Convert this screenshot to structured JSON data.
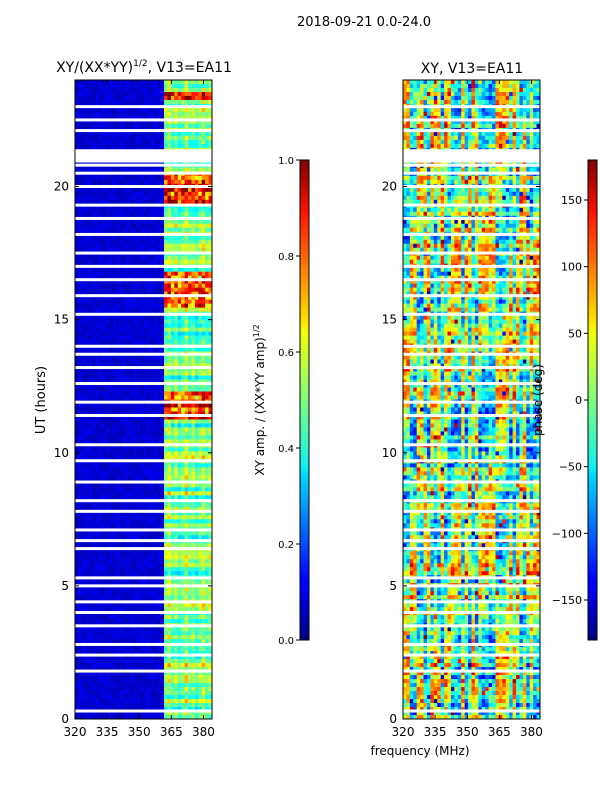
{
  "suptitle": "2018-09-21 0.0-24.0",
  "chart_data": [
    {
      "type": "heatmap",
      "title": "XY/(XX*YY)",
      "title_sup": "1/2",
      "title_suffix": ", V13=EA11",
      "xlabel": "",
      "ylabel": "UT (hours)",
      "xlim": [
        320,
        384
      ],
      "ylim": [
        0,
        24
      ],
      "xticks": [
        320,
        335,
        350,
        365,
        380
      ],
      "yticks": [
        0,
        5,
        10,
        15,
        20
      ],
      "colormap": "jet",
      "colorbar": {
        "label": "XY amp. / (XX*YY amp)",
        "label_sup": "1/2",
        "range": [
          0.0,
          1.0
        ],
        "ticks": [
          "0.0",
          "0.2",
          "0.4",
          "0.6",
          "0.8",
          "1.0"
        ],
        "tick_values": [
          0.0,
          0.2,
          0.4,
          0.6,
          0.8,
          1.0
        ]
      },
      "blank_rows_ut": [
        0.3,
        1.8,
        2.4,
        2.8,
        3.5,
        4.0,
        4.4,
        5.0,
        5.3,
        6.4,
        6.7,
        7.1,
        7.8,
        8.2,
        8.9,
        9.7,
        10.3,
        11.4,
        11.9,
        12.6,
        13.2,
        13.7,
        14.0,
        15.2,
        15.9,
        16.5,
        17.0,
        17.5,
        18.2,
        18.8,
        19.3,
        20.0,
        20.5,
        20.8,
        21.0,
        22.1,
        22.5,
        23.0
      ]
    },
    {
      "type": "heatmap",
      "title": "XY, V13=EA11",
      "xlabel": "frequency (MHz)",
      "ylabel": "",
      "xlim": [
        320,
        384
      ],
      "ylim": [
        0,
        24
      ],
      "xticks": [
        320,
        335,
        350,
        365,
        380
      ],
      "yticks": [
        0,
        5,
        10,
        15,
        20
      ],
      "colormap": "jet",
      "colorbar": {
        "label": "phase (deg)",
        "range": [
          -180,
          180
        ],
        "ticks": [
          "−150",
          "−100",
          "−50",
          "0",
          "50",
          "100",
          "150"
        ],
        "tick_values": [
          -150,
          -100,
          -50,
          0,
          50,
          100,
          150
        ]
      },
      "blank_rows_ut": [
        0.3,
        1.8,
        2.4,
        2.8,
        3.5,
        4.0,
        4.4,
        5.0,
        5.3,
        6.4,
        6.7,
        7.1,
        7.8,
        8.2,
        8.9,
        9.7,
        10.3,
        11.4,
        11.9,
        12.6,
        13.2,
        13.7,
        14.0,
        15.2,
        15.9,
        16.5,
        17.0,
        17.5,
        18.2,
        18.8,
        19.3,
        20.0,
        20.5,
        20.8,
        21.0,
        22.1,
        22.5,
        23.0
      ]
    }
  ]
}
